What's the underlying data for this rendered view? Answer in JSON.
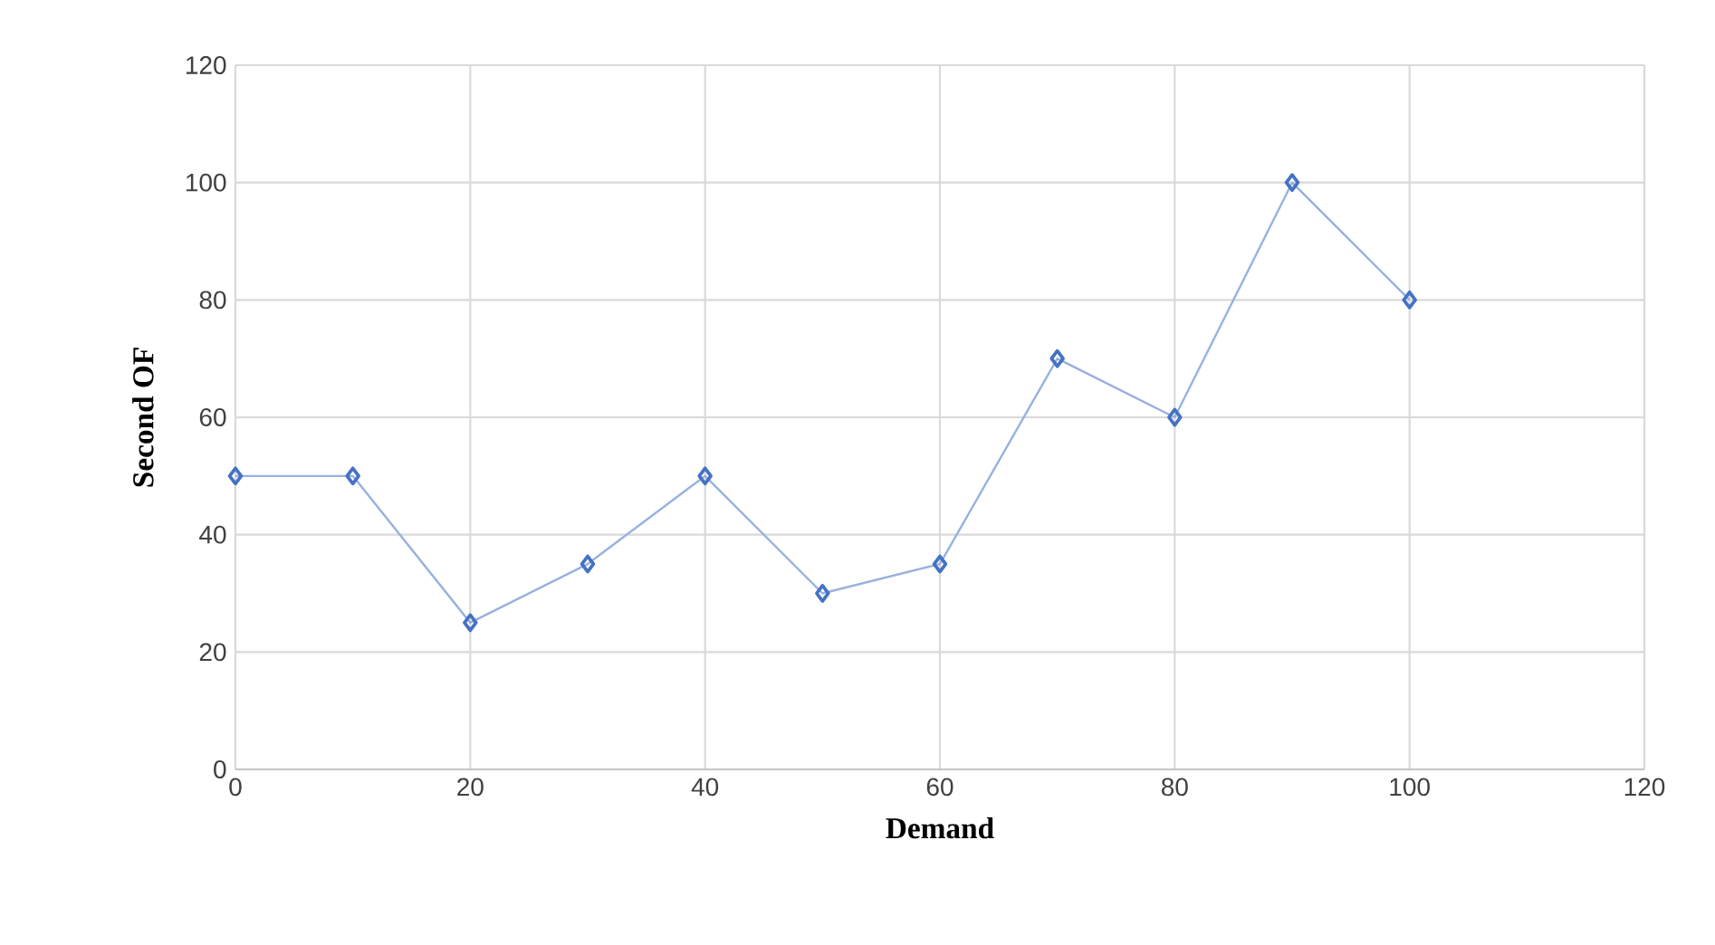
{
  "chart_data": {
    "type": "line",
    "xlabel": "Demand",
    "ylabel": "Second OF",
    "x": [
      0,
      10,
      20,
      30,
      40,
      50,
      60,
      70,
      80,
      90,
      100
    ],
    "series": [
      {
        "color": "#4472c4",
        "values": [
          50,
          50,
          25,
          35,
          50,
          30,
          35,
          70,
          60,
          100,
          80
        ]
      }
    ],
    "xlim": [
      0,
      120
    ],
    "ylim": [
      0,
      120
    ],
    "xticks": [
      0,
      20,
      40,
      60,
      80,
      100,
      120
    ],
    "yticks": [
      0,
      20,
      40,
      60,
      80,
      100,
      120
    ],
    "grid": true,
    "marker": "diamond",
    "line_style": "solid"
  }
}
